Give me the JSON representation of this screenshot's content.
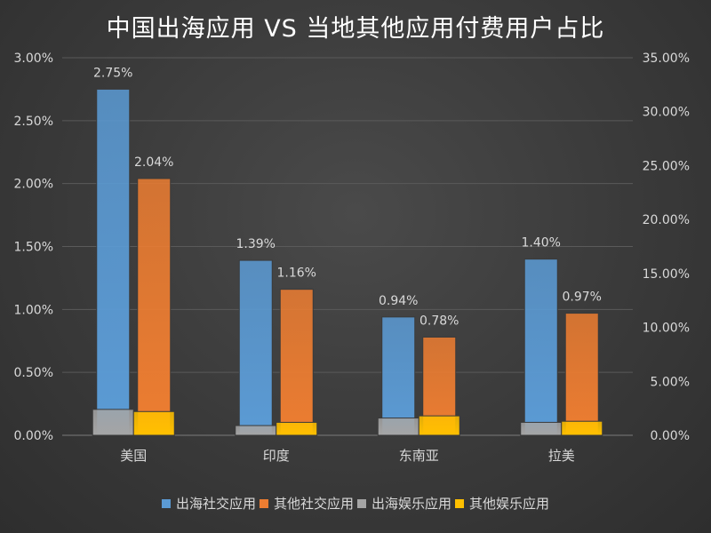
{
  "chart_data": {
    "type": "bar",
    "title": "中国出海应用 VS 当地其他应用付费用户占比",
    "categories": [
      "美国",
      "印度",
      "东南亚",
      "拉美"
    ],
    "y_left": {
      "min": 0,
      "max": 3.0,
      "step": 0.5,
      "ticks": [
        "0.00%",
        "0.50%",
        "1.00%",
        "1.50%",
        "2.00%",
        "2.50%",
        "3.00%"
      ]
    },
    "y_right": {
      "min": 0,
      "max": 35.0,
      "step": 5,
      "ticks": [
        "0.00%",
        "5.00%",
        "10.00%",
        "15.00%",
        "20.00%",
        "25.00%",
        "30.00%",
        "35.00%"
      ]
    },
    "series": [
      {
        "name": "出海社交应用",
        "axis": "left",
        "color": "#5b9bd5",
        "values": [
          2.75,
          1.39,
          0.94,
          1.4
        ],
        "labels": [
          "2.75%",
          "1.39%",
          "0.94%",
          "1.40%"
        ]
      },
      {
        "name": "其他社交应用",
        "axis": "left",
        "color": "#ed7d31",
        "values": [
          2.04,
          1.16,
          0.78,
          0.97
        ],
        "labels": [
          "2.04%",
          "1.16%",
          "0.78%",
          "0.97%"
        ]
      },
      {
        "name": "出海娱乐应用",
        "axis": "right",
        "color": "#a5a5a5",
        "values": [
          2.4,
          0.9,
          1.6,
          1.2
        ]
      },
      {
        "name": "其他娱乐应用",
        "axis": "right",
        "color": "#ffc000",
        "values": [
          2.2,
          1.2,
          1.8,
          1.3
        ]
      }
    ],
    "legend_position": "bottom",
    "grid": true
  }
}
